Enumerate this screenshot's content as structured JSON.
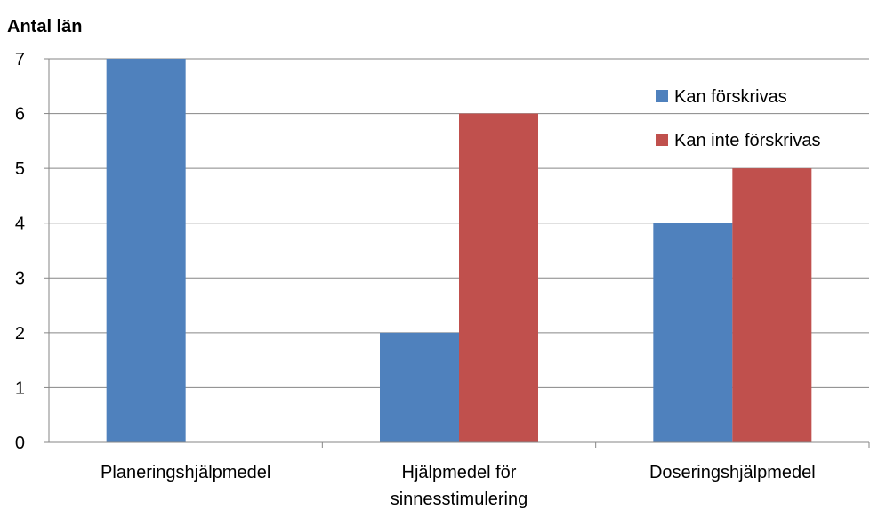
{
  "chart_data": {
    "type": "bar",
    "ylabel": "Antal län",
    "xlabel": "",
    "title": "",
    "ylim": [
      0,
      7
    ],
    "yticks": [
      0,
      1,
      2,
      3,
      4,
      5,
      6,
      7
    ],
    "grid": true,
    "legend_position": "top-right",
    "categories": [
      [
        "Planeringshjälpmedel"
      ],
      [
        "Hjälpmedel för",
        "sinnesstimulering"
      ],
      [
        "Doseringshjälpmedel"
      ]
    ],
    "series": [
      {
        "name": "Kan förskrivas",
        "color": "#4F81BD",
        "values": [
          7,
          2,
          4
        ]
      },
      {
        "name": "Kan inte förskrivas",
        "color": "#C0504D",
        "values": [
          0,
          6,
          5
        ]
      }
    ]
  }
}
